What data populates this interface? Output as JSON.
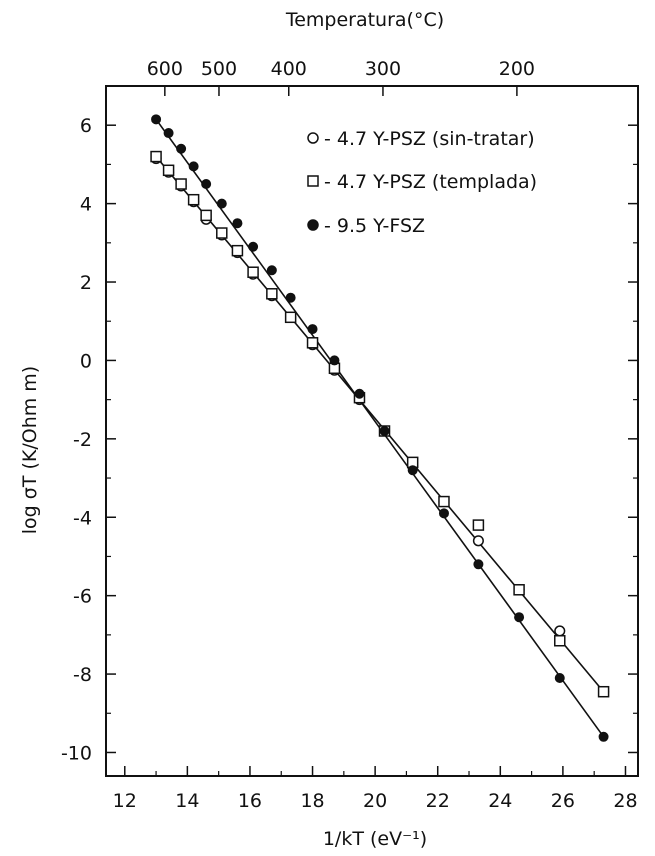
{
  "chart_data": {
    "type": "scatter",
    "title": "",
    "xlabel": "1/kT (eV⁻¹)",
    "ylabel": "log σT (K/Ohm m)",
    "top_axis_label": "Temperatura(°C)",
    "xlim": [
      11.4,
      28.4
    ],
    "ylim": [
      -10.6,
      7.0
    ],
    "x_ticks": [
      12,
      14,
      16,
      18,
      20,
      22,
      24,
      26,
      28
    ],
    "y_ticks": [
      6,
      4,
      2,
      0,
      -2,
      -4,
      -6,
      -8,
      -10
    ],
    "x_tick_labels": [
      "12",
      "14",
      "16",
      "18",
      "20",
      "22",
      "24",
      "26",
      "28"
    ],
    "y_tick_labels": [
      "6",
      "4",
      "2",
      "0",
      "-2",
      "-4",
      "-6",
      "-8",
      "-10"
    ],
    "top_ticks": [
      {
        "label": "600",
        "x": 13.28
      },
      {
        "label": "500",
        "x": 15.01
      },
      {
        "label": "400",
        "x": 17.24
      },
      {
        "label": "300",
        "x": 20.25
      },
      {
        "label": "200",
        "x": 24.53
      }
    ],
    "grid": false,
    "legend_position": "top-right",
    "series": [
      {
        "name": "4.7 Y-PSZ (sin-tratar)",
        "marker": "open-circle",
        "x": [
          13.0,
          13.4,
          13.8,
          14.2,
          14.6,
          15.1,
          15.6,
          16.1,
          16.7,
          17.3,
          18.0,
          18.7,
          19.5,
          20.3,
          21.2,
          22.2,
          23.3,
          24.6,
          25.9,
          27.3
        ],
        "y": [
          5.15,
          4.8,
          4.45,
          4.05,
          3.6,
          3.2,
          2.75,
          2.2,
          1.65,
          1.1,
          0.4,
          -0.25,
          -1.0,
          -1.8,
          -2.7,
          -3.6,
          -4.6,
          -5.85,
          -6.9,
          -8.45
        ]
      },
      {
        "name": "4.7 Y-PSZ (templada)",
        "marker": "open-square",
        "x": [
          13.0,
          13.4,
          13.8,
          14.2,
          14.6,
          15.1,
          15.6,
          16.1,
          16.7,
          17.3,
          18.0,
          18.7,
          19.5,
          20.3,
          21.2,
          22.2,
          23.3,
          24.6,
          25.9,
          27.3
        ],
        "y": [
          5.2,
          4.85,
          4.5,
          4.1,
          3.7,
          3.25,
          2.8,
          2.25,
          1.7,
          1.1,
          0.45,
          -0.2,
          -0.95,
          -1.8,
          -2.6,
          -3.6,
          -4.2,
          -5.85,
          -7.15,
          -8.45
        ]
      },
      {
        "name": "9.5 Y-FSZ",
        "marker": "filled-circle",
        "x": [
          13.0,
          13.4,
          13.8,
          14.2,
          14.6,
          15.1,
          15.6,
          16.1,
          16.7,
          17.3,
          18.0,
          18.7,
          19.5,
          20.3,
          21.2,
          22.2,
          23.3,
          24.6,
          25.9,
          27.3
        ],
        "y": [
          6.15,
          5.8,
          5.4,
          4.95,
          4.5,
          4.0,
          3.5,
          2.9,
          2.3,
          1.6,
          0.8,
          0.0,
          -0.85,
          -1.8,
          -2.8,
          -3.9,
          -5.2,
          -6.55,
          -8.1,
          -9.6
        ]
      }
    ],
    "fit_lines": [
      {
        "name": "4.7 Y-PSZ fit",
        "x": [
          13.0,
          27.3
        ],
        "y": [
          5.2,
          -8.45
        ]
      },
      {
        "name": "9.5 Y-FSZ fit",
        "x": [
          13.0,
          27.3
        ],
        "y": [
          6.15,
          -9.6
        ]
      }
    ]
  }
}
